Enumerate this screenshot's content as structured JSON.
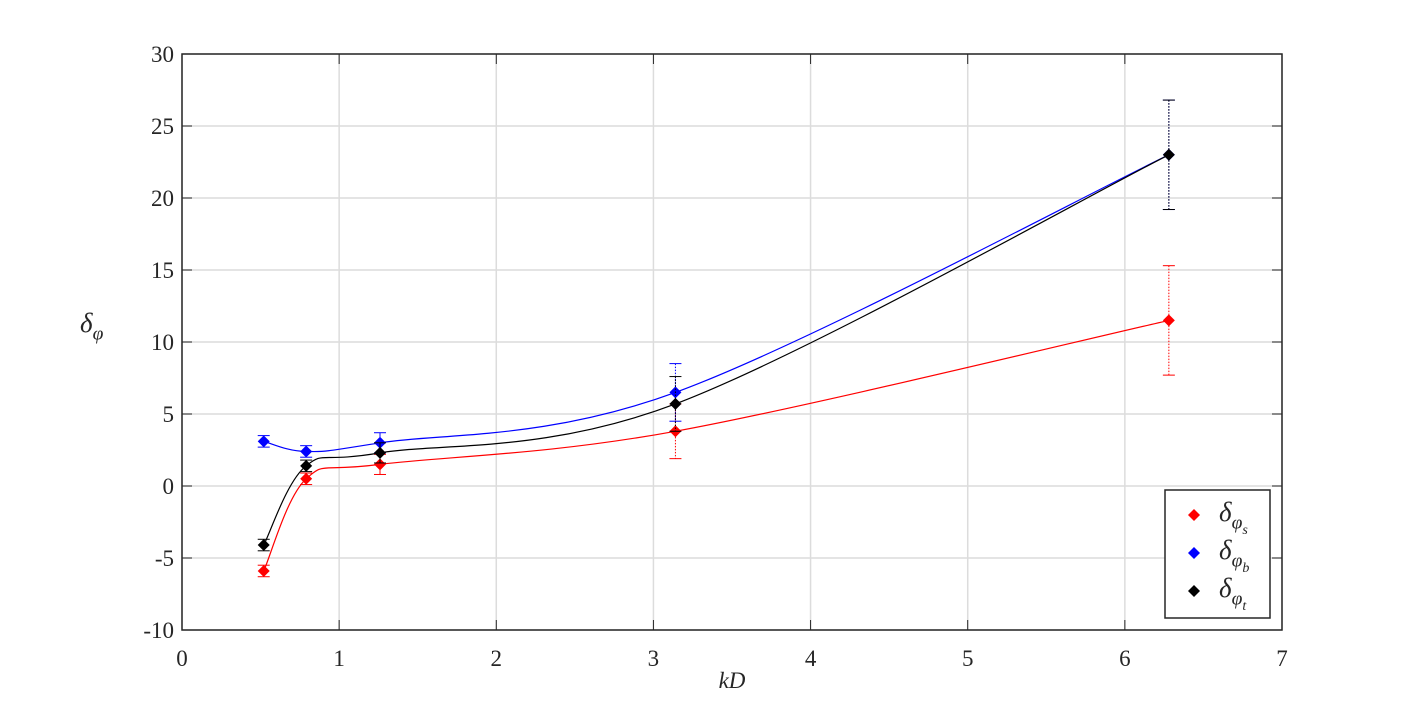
{
  "chart_data": {
    "type": "line",
    "x_label": "kD",
    "y_label": "δφ",
    "xlim": [
      0,
      7
    ],
    "xticks": [
      0,
      1,
      2,
      3,
      4,
      5,
      6,
      7
    ],
    "ylim": [
      -10,
      30
    ],
    "yticks": [
      -10,
      -5,
      0,
      5,
      10,
      15,
      20,
      25,
      30
    ],
    "grid": true,
    "legend": "lower right",
    "x": [
      0.52,
      0.79,
      1.26,
      3.14,
      6.28
    ],
    "series": [
      {
        "name": "δφs",
        "color": "#ff0000",
        "values": [
          -5.9,
          0.5,
          1.5,
          3.8,
          11.5
        ],
        "errors": [
          0.4,
          0.4,
          0.7,
          1.9,
          3.8
        ]
      },
      {
        "name": "δφb",
        "color": "#0000ff",
        "values": [
          3.1,
          2.4,
          3.0,
          6.5,
          23.0
        ],
        "errors": [
          0.4,
          0.4,
          0.7,
          2.0,
          3.8
        ]
      },
      {
        "name": "δφt",
        "color": "#000000",
        "values": [
          -4.1,
          1.4,
          2.3,
          5.7,
          23.0
        ],
        "errors": [
          0.4,
          0.4,
          0.7,
          1.9,
          3.8
        ]
      }
    ]
  }
}
